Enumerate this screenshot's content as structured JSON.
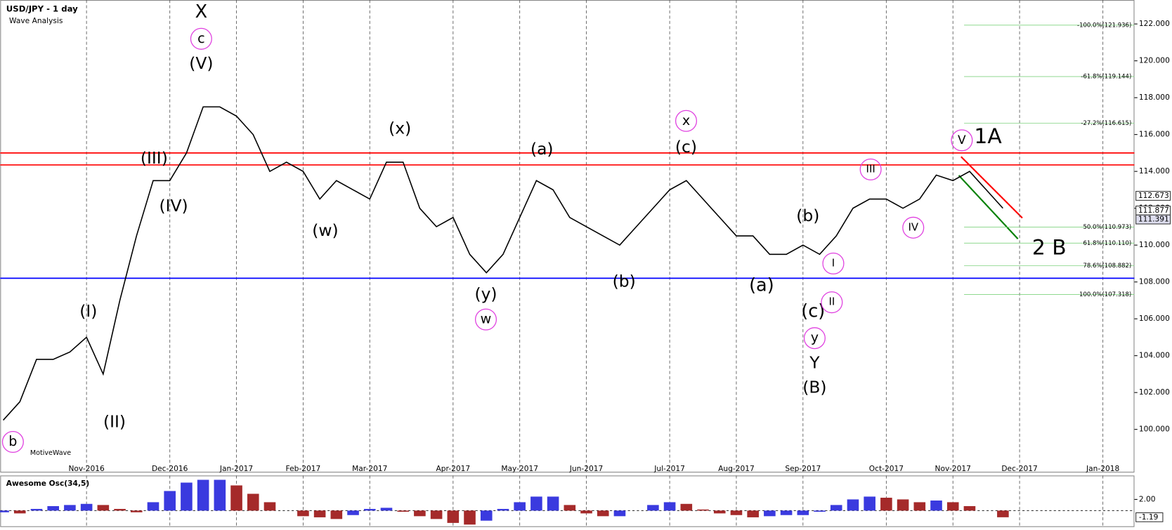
{
  "chart_data": [
    {
      "type": "line",
      "title": "USD/JPY - 1 day",
      "subtitle": "Wave Analysis",
      "watermark": "MotiveWave",
      "categories": [
        null,
        null,
        null,
        null,
        null,
        "Nov-2016",
        null,
        null,
        null,
        null,
        "Dec-2016",
        null,
        null,
        null,
        "Jan-2017",
        null,
        null,
        null,
        "Feb-2017",
        null,
        null,
        null,
        "Mar-2017",
        null,
        null,
        null,
        null,
        "Apr-2017",
        null,
        null,
        null,
        "May-2017",
        null,
        null,
        null,
        "Jun-2017",
        null,
        null,
        null,
        null,
        "Jul-2017",
        null,
        null,
        null,
        "Aug-2017",
        null,
        null,
        null,
        "Sep-2017",
        null,
        null,
        null,
        null,
        "Oct-2017",
        null,
        null,
        null,
        "Nov-2017",
        null,
        null,
        null,
        "Dec-2017",
        null,
        null,
        null,
        null,
        "Jan-2018",
        null
      ],
      "values": [
        100.5,
        101.5,
        103.8,
        103.8,
        104.2,
        105,
        103,
        107,
        110.5,
        113.5,
        113.5,
        115,
        117.5,
        117.5,
        117,
        116,
        114,
        114.5,
        114,
        112.5,
        113.5,
        113,
        112.5,
        114.5,
        114.5,
        112,
        111,
        111.5,
        109.5,
        108.5,
        109.5,
        111.5,
        113.5,
        113,
        111.5,
        111,
        110.5,
        110,
        111,
        112,
        113,
        113.5,
        112.5,
        111.5,
        110.5,
        110.5,
        109.5,
        109.5,
        110,
        109.5,
        110.5,
        112,
        112.5,
        112.5,
        112,
        112.5,
        113.8,
        113.5,
        114,
        113,
        112,
        null,
        null,
        null,
        null,
        null,
        null,
        null
      ],
      "color": "#000000",
      "ylim": [
        97.7,
        123.3
      ],
      "yticks": [
        {
          "value": 100,
          "label": "100.000"
        },
        {
          "value": 102,
          "label": "102.000"
        },
        {
          "value": 104,
          "label": "104.000"
        },
        {
          "value": 106,
          "label": "106.000"
        },
        {
          "value": 108,
          "label": "108.000"
        },
        {
          "value": 110,
          "label": "110.000"
        },
        {
          "value": 112,
          "label": "112.000"
        },
        {
          "value": 114,
          "label": "114.000"
        },
        {
          "value": 116,
          "label": "116.000"
        },
        {
          "value": 118,
          "label": "118.000"
        },
        {
          "value": 120,
          "label": "120.000"
        },
        {
          "value": 122,
          "label": "122.000"
        }
      ],
      "grid": true,
      "price_labels": [
        {
          "value": 112.673,
          "label": "112.673"
        },
        {
          "value": 111.877,
          "label": "111.877"
        },
        {
          "value": 111.391,
          "label": "111.391"
        }
      ],
      "hlines": [
        {
          "value": 115.0,
          "color": "#ff0000"
        },
        {
          "value": 114.35,
          "color": "#ff0000"
        },
        {
          "value": 108.2,
          "color": "#0000ff"
        }
      ],
      "fib_levels": [
        {
          "value": 121.936,
          "label": "-100.0%(121.936)"
        },
        {
          "value": 119.144,
          "label": "-61.8%(119.144)"
        },
        {
          "value": 116.615,
          "label": "-27.2%(116.615)"
        },
        {
          "value": 110.973,
          "label": "50.0%(110.973)"
        },
        {
          "value": 110.11,
          "label": "61.8%(110.110)"
        },
        {
          "value": 108.882,
          "label": "78.6%(108.882)"
        },
        {
          "value": 107.318,
          "label": "100.0%(107.318)"
        }
      ],
      "annotations": [
        {
          "text": "X",
          "color": "#b48ee0"
        },
        {
          "text": "c",
          "color": "#e040e0"
        },
        {
          "text": "(V)",
          "color": "#6b1a6b"
        },
        {
          "text": "(III)",
          "color": "#6b1a6b"
        },
        {
          "text": "(IV)",
          "color": "#6b1a6b"
        },
        {
          "text": "(I)",
          "color": "#6b1a6b"
        },
        {
          "text": "(II)",
          "color": "#6b1a6b"
        },
        {
          "text": "b",
          "color": "#e040e0"
        },
        {
          "text": "(x)",
          "color": "#6b1a6b"
        },
        {
          "text": "(w)",
          "color": "#6b1a6b"
        },
        {
          "text": "(y)",
          "color": "#6b1a6b"
        },
        {
          "text": "w",
          "color": "#e040e0"
        },
        {
          "text": "(a)",
          "color": "#6b1a6b"
        },
        {
          "text": "(b)",
          "color": "#6b1a6b"
        },
        {
          "text": "x",
          "color": "#e040e0"
        },
        {
          "text": "(c)",
          "color": "#6b1a6b"
        },
        {
          "text": "(b)",
          "color": "#6b1a6b"
        },
        {
          "text": "(a)",
          "color": "#6b1a6b"
        },
        {
          "text": "(c)",
          "color": "#6b1a6b"
        },
        {
          "text": "y",
          "color": "#e040e0"
        },
        {
          "text": "Y",
          "color": "#b48ee0"
        },
        {
          "text": "(B)",
          "color": "#ff0000"
        },
        {
          "text": "I",
          "color": "#e040e0"
        },
        {
          "text": "II",
          "color": "#e040e0"
        },
        {
          "text": "III",
          "color": "#e040e0"
        },
        {
          "text": "IV",
          "color": "#e040e0"
        },
        {
          "text": "V",
          "color": "#e040e0"
        },
        {
          "text": "1A",
          "color": "#b48ee0"
        },
        {
          "text": "2 B",
          "color": "#b48ee0"
        }
      ]
    },
    {
      "type": "bar",
      "title": "Awesome Osc(34,5)",
      "values": [
        -0.3,
        -0.5,
        0.3,
        0.8,
        1,
        1.2,
        1,
        0.3,
        -0.3,
        1.5,
        3.5,
        5,
        5.5,
        5.5,
        4.5,
        3,
        1.5,
        0,
        -1,
        -1.2,
        -1.5,
        -0.8,
        0.3,
        0.5,
        -0.2,
        -1,
        -1.5,
        -2.2,
        -2.5,
        -1.8,
        0.3,
        1.5,
        2.5,
        2.5,
        1,
        -0.5,
        -1,
        -1,
        0,
        1,
        1.5,
        1.2,
        0.2,
        -0.5,
        -0.8,
        -1.2,
        -1,
        -0.8,
        -0.8,
        -0.2,
        1,
        2,
        2.5,
        2.3,
        2,
        1.5,
        1.8,
        1.5,
        0.8,
        0,
        -1.19
      ],
      "up_color": "#3a3adf",
      "down_color": "#a52a2a",
      "ylim": [
        -2.8,
        6.27
      ],
      "yticks": [
        {
          "value": 2,
          "label": "2.00"
        }
      ],
      "current_label": {
        "value": -1.19,
        "label": "-1.19"
      }
    }
  ]
}
